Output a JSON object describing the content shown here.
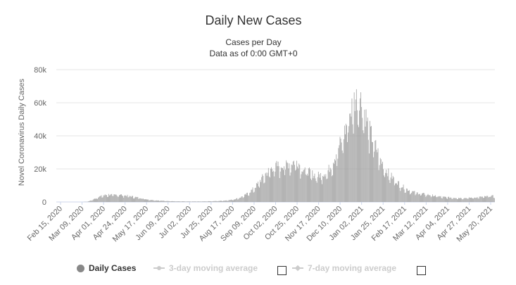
{
  "chart_data": {
    "type": "bar",
    "title": "Daily New Cases",
    "subtitle": "Cases per Day",
    "subtitle2": "Data as of 0:00 GMT+0",
    "ylabel": "Novel Coronavirus Daily Cases",
    "xlabel": "",
    "ylim": [
      0,
      80000
    ],
    "y_ticks": [
      0,
      20000,
      40000,
      60000,
      80000
    ],
    "y_tick_labels": [
      "0",
      "20k",
      "40k",
      "60k",
      "80k"
    ],
    "x_tick_labels": [
      "Feb 15, 2020",
      "Mar 09, 2020",
      "Apr 01, 2020",
      "Apr 24, 2020",
      "May 17, 2020",
      "Jun 09, 2020",
      "Jul 02, 2020",
      "Jul 25, 2020",
      "Aug 17, 2020",
      "Sep 09, 2020",
      "Oct 02, 2020",
      "Oct 25, 2020",
      "Nov 17, 2020",
      "Dec 10, 2020",
      "Jan 02, 2021",
      "Jan 25, 2021",
      "Feb 17, 2021",
      "Mar 12, 2021",
      "Apr 04, 2021",
      "Apr 27, 2021",
      "May 20, 2021"
    ],
    "series": [
      {
        "name": "Daily Cases",
        "approx_weekly_values": [
          0,
          0,
          0,
          0,
          0,
          0,
          200,
          1500,
          3000,
          4000,
          4500,
          4200,
          4500,
          4000,
          3600,
          3000,
          2500,
          1800,
          1300,
          1000,
          800,
          600,
          500,
          400,
          350,
          300,
          300,
          300,
          350,
          400,
          500,
          600,
          800,
          1100,
          1600,
          2500,
          4000,
          6000,
          9000,
          13000,
          17000,
          20000,
          22000,
          22000,
          23000,
          24000,
          25000,
          21000,
          19000,
          17000,
          16000,
          17000,
          19000,
          25000,
          33000,
          41000,
          52000,
          62000,
          65000,
          55000,
          43000,
          35000,
          26000,
          20000,
          16000,
          13000,
          10000,
          8000,
          6500,
          5500,
          5000,
          4500,
          4000,
          3500,
          3000,
          2800,
          2600,
          2500,
          2400,
          2500,
          2700,
          3000,
          3200,
          3600
        ]
      }
    ],
    "legend": [
      {
        "label": "Daily Cases",
        "active": true,
        "color": "#888888"
      },
      {
        "label": "3-day moving average",
        "active": false,
        "color": "#cccccc"
      },
      {
        "label": "7-day moving average",
        "active": false,
        "color": "#cccccc"
      }
    ],
    "legend_position": "bottom",
    "grid": true,
    "bar_color": "#999999",
    "grid_color": "#e6e6e6"
  }
}
